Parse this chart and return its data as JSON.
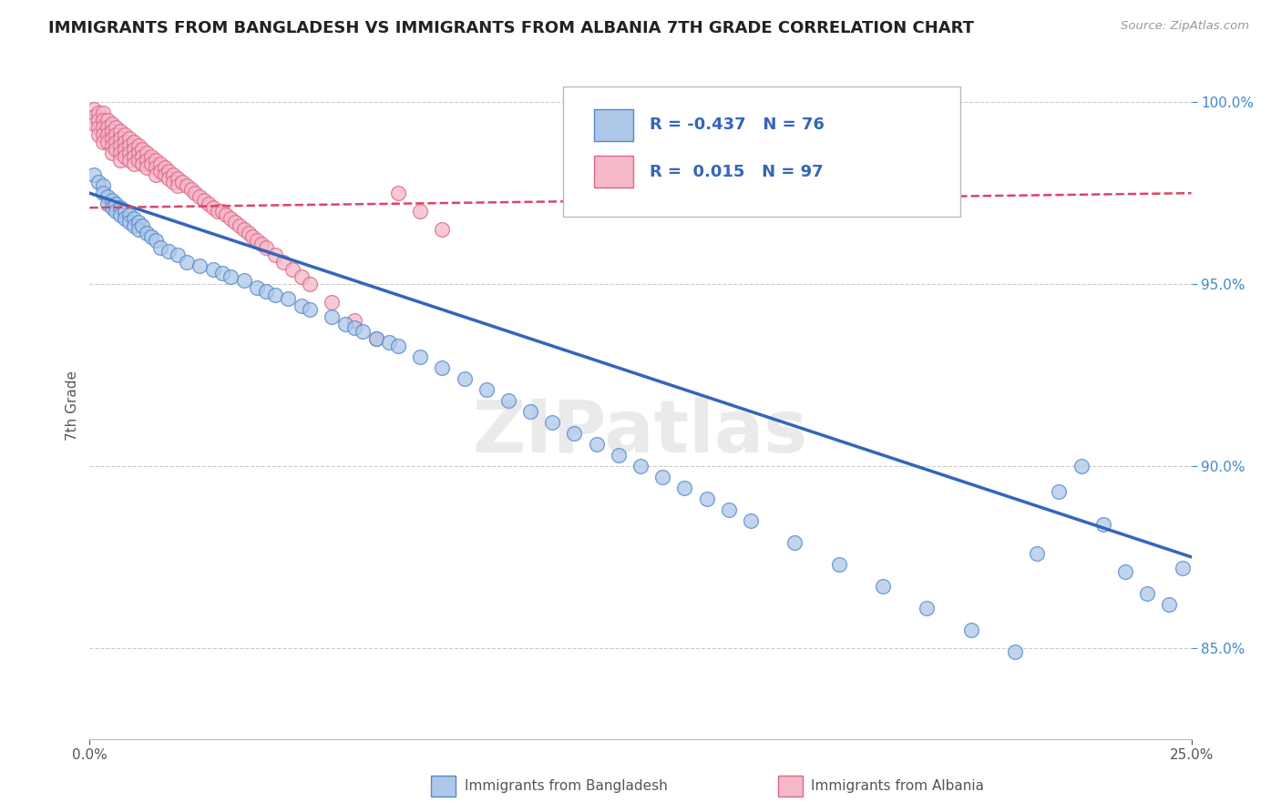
{
  "title": "IMMIGRANTS FROM BANGLADESH VS IMMIGRANTS FROM ALBANIA 7TH GRADE CORRELATION CHART",
  "source_text": "Source: ZipAtlas.com",
  "ylabel": "7th Grade",
  "xlim": [
    0.0,
    0.25
  ],
  "ylim": [
    0.825,
    1.008
  ],
  "yticks": [
    0.85,
    0.9,
    0.95,
    1.0
  ],
  "ytick_labels": [
    "85.0%",
    "90.0%",
    "95.0%",
    "100.0%"
  ],
  "xticks": [
    0.0,
    0.25
  ],
  "xtick_labels": [
    "0.0%",
    "25.0%"
  ],
  "blue_color": "#adc8e8",
  "pink_color": "#f5b8c8",
  "blue_edge_color": "#5588cc",
  "pink_edge_color": "#dd6688",
  "blue_line_color": "#3366bb",
  "pink_line_color": "#dd4466",
  "watermark": "ZIPatlas",
  "blue_R": "-0.437",
  "blue_N": "76",
  "pink_R": "0.015",
  "pink_N": "97",
  "blue_scatter_x": [
    0.001,
    0.002,
    0.003,
    0.003,
    0.004,
    0.004,
    0.005,
    0.005,
    0.006,
    0.006,
    0.007,
    0.007,
    0.008,
    0.008,
    0.009,
    0.009,
    0.01,
    0.01,
    0.011,
    0.011,
    0.012,
    0.013,
    0.014,
    0.015,
    0.016,
    0.018,
    0.02,
    0.022,
    0.025,
    0.028,
    0.03,
    0.032,
    0.035,
    0.038,
    0.04,
    0.042,
    0.045,
    0.048,
    0.05,
    0.055,
    0.058,
    0.06,
    0.062,
    0.065,
    0.068,
    0.07,
    0.075,
    0.08,
    0.085,
    0.09,
    0.095,
    0.1,
    0.105,
    0.11,
    0.115,
    0.12,
    0.125,
    0.13,
    0.135,
    0.14,
    0.145,
    0.15,
    0.16,
    0.17,
    0.18,
    0.19,
    0.2,
    0.21,
    0.215,
    0.22,
    0.225,
    0.23,
    0.235,
    0.24,
    0.245,
    0.248
  ],
  "blue_scatter_y": [
    0.98,
    0.978,
    0.977,
    0.975,
    0.974,
    0.972,
    0.973,
    0.971,
    0.972,
    0.97,
    0.971,
    0.969,
    0.97,
    0.968,
    0.969,
    0.967,
    0.968,
    0.966,
    0.967,
    0.965,
    0.966,
    0.964,
    0.963,
    0.962,
    0.96,
    0.959,
    0.958,
    0.956,
    0.955,
    0.954,
    0.953,
    0.952,
    0.951,
    0.949,
    0.948,
    0.947,
    0.946,
    0.944,
    0.943,
    0.941,
    0.939,
    0.938,
    0.937,
    0.935,
    0.934,
    0.933,
    0.93,
    0.927,
    0.924,
    0.921,
    0.918,
    0.915,
    0.912,
    0.909,
    0.906,
    0.903,
    0.9,
    0.897,
    0.894,
    0.891,
    0.888,
    0.885,
    0.879,
    0.873,
    0.867,
    0.861,
    0.855,
    0.849,
    0.876,
    0.893,
    0.9,
    0.884,
    0.871,
    0.865,
    0.862,
    0.872
  ],
  "pink_scatter_x": [
    0.001,
    0.001,
    0.001,
    0.002,
    0.002,
    0.002,
    0.002,
    0.003,
    0.003,
    0.003,
    0.003,
    0.003,
    0.004,
    0.004,
    0.004,
    0.004,
    0.005,
    0.005,
    0.005,
    0.005,
    0.005,
    0.006,
    0.006,
    0.006,
    0.006,
    0.007,
    0.007,
    0.007,
    0.007,
    0.007,
    0.008,
    0.008,
    0.008,
    0.008,
    0.009,
    0.009,
    0.009,
    0.009,
    0.01,
    0.01,
    0.01,
    0.01,
    0.011,
    0.011,
    0.011,
    0.012,
    0.012,
    0.012,
    0.013,
    0.013,
    0.013,
    0.014,
    0.014,
    0.015,
    0.015,
    0.015,
    0.016,
    0.016,
    0.017,
    0.017,
    0.018,
    0.018,
    0.019,
    0.019,
    0.02,
    0.02,
    0.021,
    0.022,
    0.023,
    0.024,
    0.025,
    0.026,
    0.027,
    0.028,
    0.029,
    0.03,
    0.031,
    0.032,
    0.033,
    0.034,
    0.035,
    0.036,
    0.037,
    0.038,
    0.039,
    0.04,
    0.042,
    0.044,
    0.046,
    0.048,
    0.05,
    0.055,
    0.06,
    0.065,
    0.07,
    0.075,
    0.08
  ],
  "pink_scatter_y": [
    0.998,
    0.996,
    0.994,
    0.997,
    0.995,
    0.993,
    0.991,
    0.997,
    0.995,
    0.993,
    0.991,
    0.989,
    0.995,
    0.993,
    0.991,
    0.989,
    0.994,
    0.992,
    0.99,
    0.988,
    0.986,
    0.993,
    0.991,
    0.989,
    0.987,
    0.992,
    0.99,
    0.988,
    0.986,
    0.984,
    0.991,
    0.989,
    0.987,
    0.985,
    0.99,
    0.988,
    0.986,
    0.984,
    0.989,
    0.987,
    0.985,
    0.983,
    0.988,
    0.986,
    0.984,
    0.987,
    0.985,
    0.983,
    0.986,
    0.984,
    0.982,
    0.985,
    0.983,
    0.984,
    0.982,
    0.98,
    0.983,
    0.981,
    0.982,
    0.98,
    0.981,
    0.979,
    0.98,
    0.978,
    0.979,
    0.977,
    0.978,
    0.977,
    0.976,
    0.975,
    0.974,
    0.973,
    0.972,
    0.971,
    0.97,
    0.97,
    0.969,
    0.968,
    0.967,
    0.966,
    0.965,
    0.964,
    0.963,
    0.962,
    0.961,
    0.96,
    0.958,
    0.956,
    0.954,
    0.952,
    0.95,
    0.945,
    0.94,
    0.935,
    0.975,
    0.97,
    0.965
  ]
}
